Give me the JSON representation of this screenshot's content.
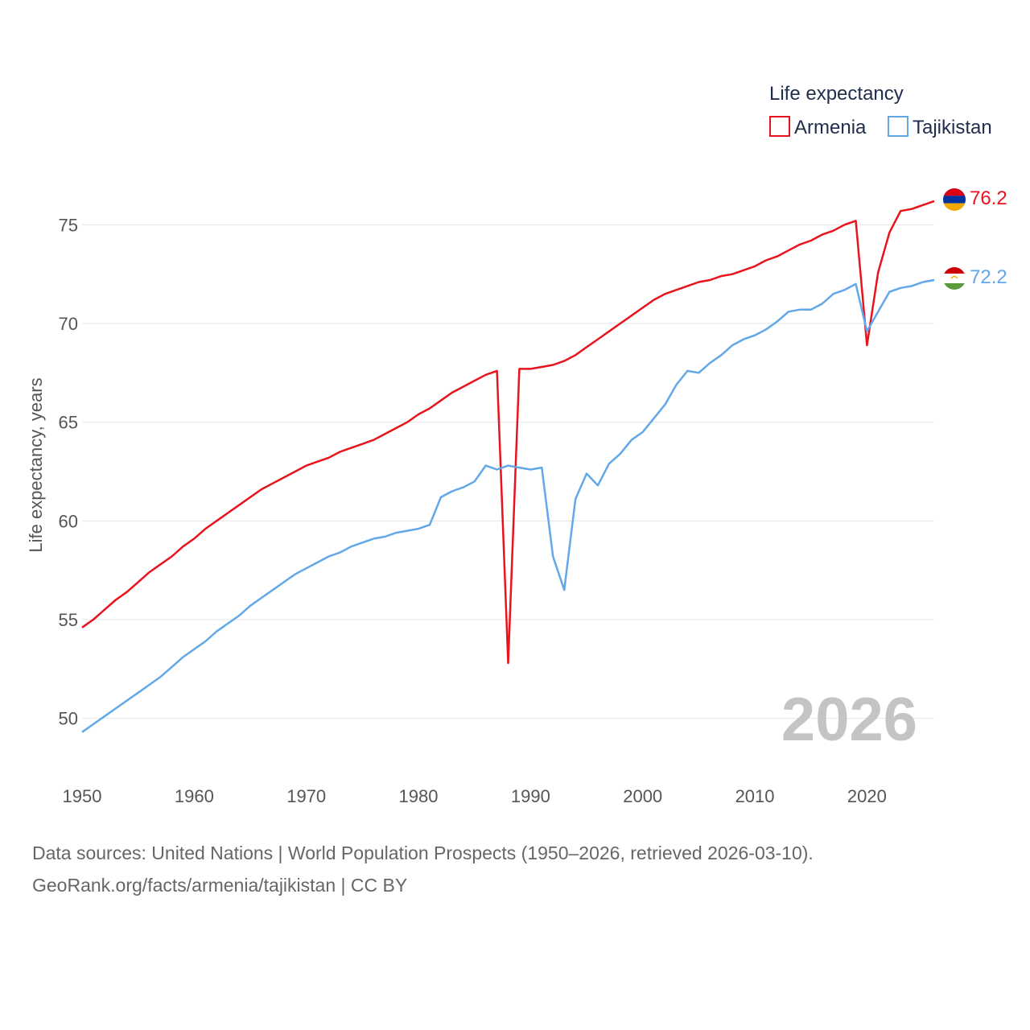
{
  "colors": {
    "armenia": "#e8131c",
    "tajikistan": "#62a8e8",
    "grid": "#e6e6e6",
    "year_watermark": "#c4c4c4"
  },
  "source": {
    "line1": "Data sources: United Nations | World Population Prospects (1950–2026, retrieved 2026-03-10).",
    "line2": "GeoRank.org/facts/armenia/tajikistan | CC BY"
  },
  "chart_data": {
    "type": "line",
    "title": "",
    "ylabel": "Life expectancy, years",
    "xlabel": "",
    "xlim": [
      1950,
      2026
    ],
    "ylim": [
      47.5,
      77.5
    ],
    "x_ticks": [
      1950,
      1960,
      1970,
      1980,
      1990,
      2000,
      2010,
      2020
    ],
    "y_ticks": [
      50,
      55,
      60,
      65,
      70,
      75
    ],
    "grid": "horizontal",
    "legend": {
      "title": "Life expectancy",
      "position": "top-right",
      "entries": [
        "Armenia",
        "Tajikistan"
      ]
    },
    "year_watermark": "2026",
    "x": [
      1950,
      1951,
      1952,
      1953,
      1954,
      1955,
      1956,
      1957,
      1958,
      1959,
      1960,
      1961,
      1962,
      1963,
      1964,
      1965,
      1966,
      1967,
      1968,
      1969,
      1970,
      1971,
      1972,
      1973,
      1974,
      1975,
      1976,
      1977,
      1978,
      1979,
      1980,
      1981,
      1982,
      1983,
      1984,
      1985,
      1986,
      1987,
      1988,
      1989,
      1990,
      1991,
      1992,
      1993,
      1994,
      1995,
      1996,
      1997,
      1998,
      1999,
      2000,
      2001,
      2002,
      2003,
      2004,
      2005,
      2006,
      2007,
      2008,
      2009,
      2010,
      2011,
      2012,
      2013,
      2014,
      2015,
      2016,
      2017,
      2018,
      2019,
      2020,
      2021,
      2022,
      2023,
      2024,
      2025,
      2026
    ],
    "series": [
      {
        "name": "Armenia",
        "end_label": "76.2",
        "values": [
          54.6,
          55.0,
          55.5,
          56.0,
          56.4,
          56.9,
          57.4,
          57.8,
          58.2,
          58.7,
          59.1,
          59.6,
          60.0,
          60.4,
          60.8,
          61.2,
          61.6,
          61.9,
          62.2,
          62.5,
          62.8,
          63.0,
          63.2,
          63.5,
          63.7,
          63.9,
          64.1,
          64.4,
          64.7,
          65.0,
          65.4,
          65.7,
          66.1,
          66.5,
          66.8,
          67.1,
          67.4,
          67.6,
          52.8,
          67.7,
          67.7,
          67.8,
          67.9,
          68.1,
          68.4,
          68.8,
          69.2,
          69.6,
          70.0,
          70.4,
          70.8,
          71.2,
          71.5,
          71.7,
          71.9,
          72.1,
          72.2,
          72.4,
          72.5,
          72.7,
          72.9,
          73.2,
          73.4,
          73.7,
          74.0,
          74.2,
          74.5,
          74.7,
          75.0,
          75.2,
          68.9,
          72.6,
          74.6,
          75.7,
          75.8,
          76.0,
          76.2
        ]
      },
      {
        "name": "Tajikistan",
        "end_label": "72.2",
        "values": [
          49.3,
          49.7,
          50.1,
          50.5,
          50.9,
          51.3,
          51.7,
          52.1,
          52.6,
          53.1,
          53.5,
          53.9,
          54.4,
          54.8,
          55.2,
          55.7,
          56.1,
          56.5,
          56.9,
          57.3,
          57.6,
          57.9,
          58.2,
          58.4,
          58.7,
          58.9,
          59.1,
          59.2,
          59.4,
          59.5,
          59.6,
          59.8,
          61.2,
          61.5,
          61.7,
          62.0,
          62.8,
          62.6,
          62.8,
          62.7,
          62.6,
          62.7,
          58.2,
          56.5,
          61.1,
          62.4,
          61.8,
          62.9,
          63.4,
          64.1,
          64.5,
          65.2,
          65.9,
          66.9,
          67.6,
          67.5,
          68.0,
          68.4,
          68.9,
          69.2,
          69.4,
          69.7,
          70.1,
          70.6,
          70.7,
          70.7,
          71.0,
          71.5,
          71.7,
          72.0,
          69.6,
          70.6,
          71.6,
          71.8,
          71.9,
          72.1,
          72.2
        ]
      }
    ]
  }
}
